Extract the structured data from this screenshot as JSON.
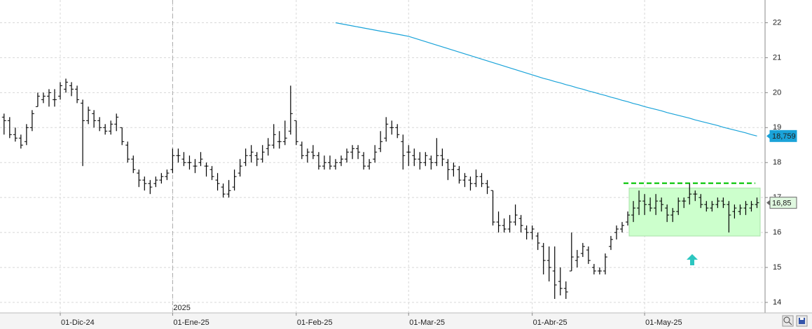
{
  "chart_data": {
    "type": "ohlc",
    "categories": [
      null,
      null,
      null,
      null,
      null,
      null,
      null,
      null,
      null,
      null,
      "01-Dic-24",
      null,
      null,
      null,
      null,
      null,
      null,
      null,
      null,
      null,
      null,
      null,
      null,
      null,
      null,
      null,
      null,
      null,
      null,
      null,
      "01-Ene-25",
      null,
      null,
      null,
      null,
      null,
      null,
      null,
      null,
      null,
      null,
      null,
      null,
      null,
      null,
      null,
      null,
      null,
      null,
      null,
      null,
      null,
      "01-Feb-25",
      null,
      null,
      null,
      null,
      null,
      null,
      null,
      null,
      null,
      null,
      null,
      null,
      null,
      null,
      null,
      null,
      null,
      null,
      null,
      "01-Mar-25",
      null,
      null,
      null,
      null,
      null,
      null,
      null,
      null,
      null,
      null,
      null,
      null,
      null,
      null,
      null,
      null,
      null,
      null,
      null,
      null,
      null,
      "01-Abr-25",
      null,
      null,
      null,
      null,
      null,
      null,
      null,
      null,
      null,
      null,
      null,
      null,
      null,
      null,
      null,
      null,
      null,
      null,
      null,
      "01-May-25",
      null,
      null,
      null,
      null,
      null,
      null,
      null,
      null,
      null,
      null,
      null,
      null,
      null,
      null,
      null,
      null,
      null,
      null,
      null,
      null
    ],
    "year_label": "2025",
    "ylim": [
      13.7,
      22.65
    ],
    "yticks": [
      14,
      15,
      16,
      17,
      18,
      19,
      20,
      21,
      22
    ],
    "grid": true,
    "ohlc": {
      "color": "#000000",
      "last_label": "16,85",
      "values": [
        [
          19.3,
          19.4,
          18.8,
          19.2
        ],
        [
          19.2,
          19.3,
          18.7,
          18.8
        ],
        [
          18.8,
          19.0,
          18.6,
          18.7
        ],
        [
          18.7,
          18.8,
          18.4,
          18.5
        ],
        [
          18.6,
          19.1,
          18.5,
          19.0
        ],
        [
          19.0,
          19.5,
          18.9,
          19.4
        ],
        [
          19.6,
          20.0,
          19.6,
          19.9
        ],
        [
          19.8,
          20.0,
          19.7,
          19.9
        ],
        [
          19.9,
          20.1,
          19.6,
          20.0
        ],
        [
          19.8,
          20.1,
          19.6,
          19.8
        ],
        [
          19.9,
          20.3,
          19.8,
          20.2
        ],
        [
          20.1,
          20.4,
          20.0,
          20.3
        ],
        [
          20.2,
          20.3,
          19.9,
          20.1
        ],
        [
          20.1,
          20.2,
          19.7,
          19.8
        ],
        [
          19.7,
          19.8,
          17.9,
          19.2
        ],
        [
          19.2,
          19.6,
          19.1,
          19.5
        ],
        [
          19.4,
          19.5,
          19.0,
          19.2
        ],
        [
          19.2,
          19.3,
          18.9,
          19.0
        ],
        [
          19.0,
          19.1,
          18.8,
          18.9
        ],
        [
          18.9,
          19.2,
          18.8,
          19.1
        ],
        [
          19.1,
          19.4,
          18.9,
          19.3
        ],
        [
          19.0,
          19.0,
          18.5,
          18.6
        ],
        [
          18.5,
          18.6,
          18.0,
          18.1
        ],
        [
          18.1,
          18.2,
          17.7,
          17.8
        ],
        [
          17.7,
          17.8,
          17.3,
          17.5
        ],
        [
          17.5,
          17.6,
          17.2,
          17.4
        ],
        [
          17.4,
          17.5,
          17.1,
          17.3
        ],
        [
          17.4,
          17.6,
          17.3,
          17.5
        ],
        [
          17.5,
          17.7,
          17.4,
          17.6
        ],
        [
          17.6,
          17.8,
          17.5,
          17.7
        ],
        [
          17.8,
          18.4,
          17.7,
          18.2
        ],
        [
          18.2,
          18.4,
          18.0,
          18.2
        ],
        [
          18.1,
          18.3,
          17.9,
          18.0
        ],
        [
          18.0,
          18.2,
          17.8,
          18.0
        ],
        [
          17.9,
          18.1,
          17.7,
          17.9
        ],
        [
          18.0,
          18.3,
          17.9,
          18.1
        ],
        [
          17.9,
          18.0,
          17.6,
          17.9
        ],
        [
          17.8,
          17.9,
          17.5,
          17.6
        ],
        [
          17.5,
          17.7,
          17.2,
          17.4
        ],
        [
          17.3,
          17.4,
          17.0,
          17.1
        ],
        [
          17.1,
          17.5,
          17.0,
          17.2
        ],
        [
          17.3,
          17.8,
          17.2,
          17.6
        ],
        [
          17.7,
          18.1,
          17.6,
          17.9
        ],
        [
          18.0,
          18.4,
          17.9,
          18.2
        ],
        [
          18.2,
          18.5,
          18.0,
          18.3
        ],
        [
          18.2,
          18.3,
          17.9,
          18.1
        ],
        [
          18.1,
          18.5,
          18.0,
          18.3
        ],
        [
          18.4,
          18.7,
          18.2,
          18.5
        ],
        [
          18.5,
          19.1,
          18.4,
          18.8
        ],
        [
          18.6,
          18.9,
          18.4,
          18.6
        ],
        [
          18.6,
          19.2,
          18.5,
          18.7
        ],
        [
          18.9,
          20.2,
          18.8,
          19.4
        ],
        [
          19.2,
          19.2,
          18.5,
          18.6
        ],
        [
          18.5,
          18.6,
          18.1,
          18.2
        ],
        [
          18.2,
          18.4,
          18.0,
          18.3
        ],
        [
          18.3,
          18.5,
          18.1,
          18.2
        ],
        [
          18.2,
          18.3,
          17.8,
          17.9
        ],
        [
          17.9,
          18.2,
          17.8,
          18.0
        ],
        [
          18.0,
          18.2,
          17.8,
          17.9
        ],
        [
          17.9,
          18.1,
          17.8,
          18.0
        ],
        [
          18.0,
          18.2,
          17.9,
          18.1
        ],
        [
          18.1,
          18.4,
          18.0,
          18.3
        ],
        [
          18.3,
          18.5,
          18.1,
          18.4
        ],
        [
          18.4,
          18.5,
          18.1,
          18.3
        ],
        [
          18.2,
          18.3,
          17.8,
          17.9
        ],
        [
          17.9,
          18.1,
          17.8,
          18.0
        ],
        [
          18.1,
          18.5,
          18.0,
          18.3
        ],
        [
          18.4,
          18.9,
          18.3,
          18.6
        ],
        [
          18.7,
          19.3,
          18.6,
          19.1
        ],
        [
          19.0,
          19.2,
          18.8,
          19.0
        ],
        [
          19.0,
          19.1,
          18.7,
          18.8
        ],
        [
          18.6,
          18.8,
          17.8,
          18.2
        ],
        [
          18.3,
          18.5,
          17.9,
          18.3
        ],
        [
          18.2,
          18.4,
          17.9,
          18.1
        ],
        [
          18.1,
          18.3,
          17.8,
          18.0
        ],
        [
          18.0,
          18.3,
          17.9,
          18.2
        ],
        [
          18.1,
          18.2,
          17.8,
          18.0
        ],
        [
          18.0,
          18.7,
          17.9,
          18.2
        ],
        [
          18.2,
          18.4,
          17.9,
          18.1
        ],
        [
          18.0,
          18.1,
          17.5,
          17.8
        ],
        [
          17.8,
          18.0,
          17.6,
          17.9
        ],
        [
          17.8,
          17.9,
          17.4,
          17.5
        ],
        [
          17.5,
          17.7,
          17.3,
          17.6
        ],
        [
          17.5,
          17.6,
          17.2,
          17.4
        ],
        [
          17.4,
          17.8,
          17.3,
          17.6
        ],
        [
          17.6,
          17.7,
          17.3,
          17.4
        ],
        [
          17.4,
          17.5,
          17.1,
          17.3
        ],
        [
          17.2,
          17.2,
          16.2,
          16.3
        ],
        [
          16.3,
          16.6,
          16.0,
          16.2
        ],
        [
          16.2,
          16.4,
          16.0,
          16.1
        ],
        [
          16.1,
          16.5,
          16.0,
          16.3
        ],
        [
          16.3,
          16.8,
          16.2,
          16.5
        ],
        [
          16.4,
          16.5,
          16.0,
          16.2
        ],
        [
          16.1,
          16.2,
          15.8,
          16.0
        ],
        [
          16.0,
          16.2,
          15.8,
          16.1
        ],
        [
          15.9,
          16.0,
          15.5,
          15.7
        ],
        [
          15.6,
          15.7,
          14.8,
          15.2
        ],
        [
          15.2,
          15.6,
          14.6,
          15.0
        ],
        [
          14.9,
          15.6,
          14.1,
          14.5
        ],
        [
          14.6,
          15.0,
          14.2,
          14.4
        ],
        [
          14.4,
          14.6,
          14.1,
          14.3
        ],
        [
          14.9,
          16.0,
          14.9,
          15.3
        ],
        [
          15.2,
          15.5,
          15.0,
          15.3
        ],
        [
          15.4,
          15.7,
          15.3,
          15.6
        ],
        [
          15.5,
          15.6,
          15.1,
          15.2
        ],
        [
          15.0,
          15.1,
          14.8,
          14.9
        ],
        [
          14.9,
          15.0,
          14.8,
          14.9
        ],
        [
          14.9,
          15.4,
          14.8,
          15.3
        ],
        [
          15.6,
          15.9,
          15.5,
          15.8
        ],
        [
          16.0,
          16.2,
          15.8,
          16.1
        ],
        [
          16.1,
          16.3,
          16.0,
          16.2
        ],
        [
          16.3,
          16.6,
          16.2,
          16.5
        ],
        [
          16.5,
          16.9,
          16.3,
          16.7
        ],
        [
          16.7,
          17.2,
          16.5,
          16.9
        ],
        [
          16.9,
          17.1,
          16.5,
          16.8
        ],
        [
          16.8,
          17.0,
          16.6,
          16.7
        ],
        [
          16.7,
          17.1,
          16.5,
          16.9
        ],
        [
          16.9,
          17.0,
          16.6,
          16.8
        ],
        [
          16.7,
          16.8,
          16.3,
          16.5
        ],
        [
          16.5,
          16.7,
          16.3,
          16.6
        ],
        [
          16.6,
          17.0,
          16.5,
          16.9
        ],
        [
          16.9,
          17.0,
          16.7,
          16.9
        ],
        [
          17.0,
          17.4,
          16.8,
          17.1
        ],
        [
          17.1,
          17.2,
          16.9,
          17.1
        ],
        [
          17.0,
          17.1,
          16.7,
          16.8
        ],
        [
          16.8,
          16.9,
          16.6,
          16.7
        ],
        [
          16.7,
          16.9,
          16.6,
          16.8
        ],
        [
          16.8,
          17.0,
          16.7,
          16.9
        ],
        [
          16.9,
          17.0,
          16.7,
          16.8
        ],
        [
          16.8,
          16.9,
          16.0,
          16.5
        ],
        [
          16.6,
          16.8,
          16.4,
          16.7
        ],
        [
          16.6,
          16.8,
          16.5,
          16.7
        ],
        [
          16.7,
          16.9,
          16.5,
          16.8
        ],
        [
          16.7,
          16.9,
          16.6,
          16.8
        ],
        [
          16.8,
          17.0,
          16.7,
          16.85
        ]
      ]
    },
    "moving_average": {
      "color": "#1aa3d9",
      "last_label": "18,759",
      "values": [
        null,
        null,
        null,
        null,
        null,
        null,
        null,
        null,
        null,
        null,
        null,
        null,
        null,
        null,
        null,
        null,
        null,
        null,
        null,
        null,
        null,
        null,
        null,
        null,
        null,
        null,
        null,
        null,
        null,
        null,
        null,
        null,
        null,
        null,
        null,
        null,
        null,
        null,
        null,
        null,
        null,
        null,
        null,
        null,
        null,
        null,
        null,
        null,
        null,
        null,
        null,
        null,
        null,
        null,
        null,
        null,
        null,
        null,
        null,
        22.0,
        21.97,
        21.94,
        21.91,
        21.88,
        21.85,
        21.82,
        21.79,
        21.76,
        21.73,
        21.7,
        21.67,
        21.64,
        21.61,
        21.56,
        21.51,
        21.46,
        21.41,
        21.36,
        21.31,
        21.26,
        21.21,
        21.16,
        21.11,
        21.06,
        21.01,
        20.96,
        20.91,
        20.86,
        20.81,
        20.76,
        20.71,
        20.66,
        20.61,
        20.56,
        20.51,
        20.46,
        20.41,
        20.37,
        20.32,
        20.28,
        20.23,
        20.19,
        20.14,
        20.1,
        20.05,
        20.01,
        19.96,
        19.92,
        19.87,
        19.83,
        19.78,
        19.74,
        19.69,
        19.65,
        19.6,
        19.56,
        19.52,
        19.48,
        19.43,
        19.39,
        19.35,
        19.31,
        19.27,
        19.22,
        19.18,
        19.14,
        19.1,
        19.06,
        19.01,
        18.97,
        18.93,
        18.89,
        18.85,
        18.8,
        18.759
      ]
    },
    "zone": {
      "color": "#ccffcc",
      "range": [
        15.9,
        17.27
      ]
    },
    "resistance": {
      "color": "#22cc22",
      "value": 17.41
    }
  }
}
